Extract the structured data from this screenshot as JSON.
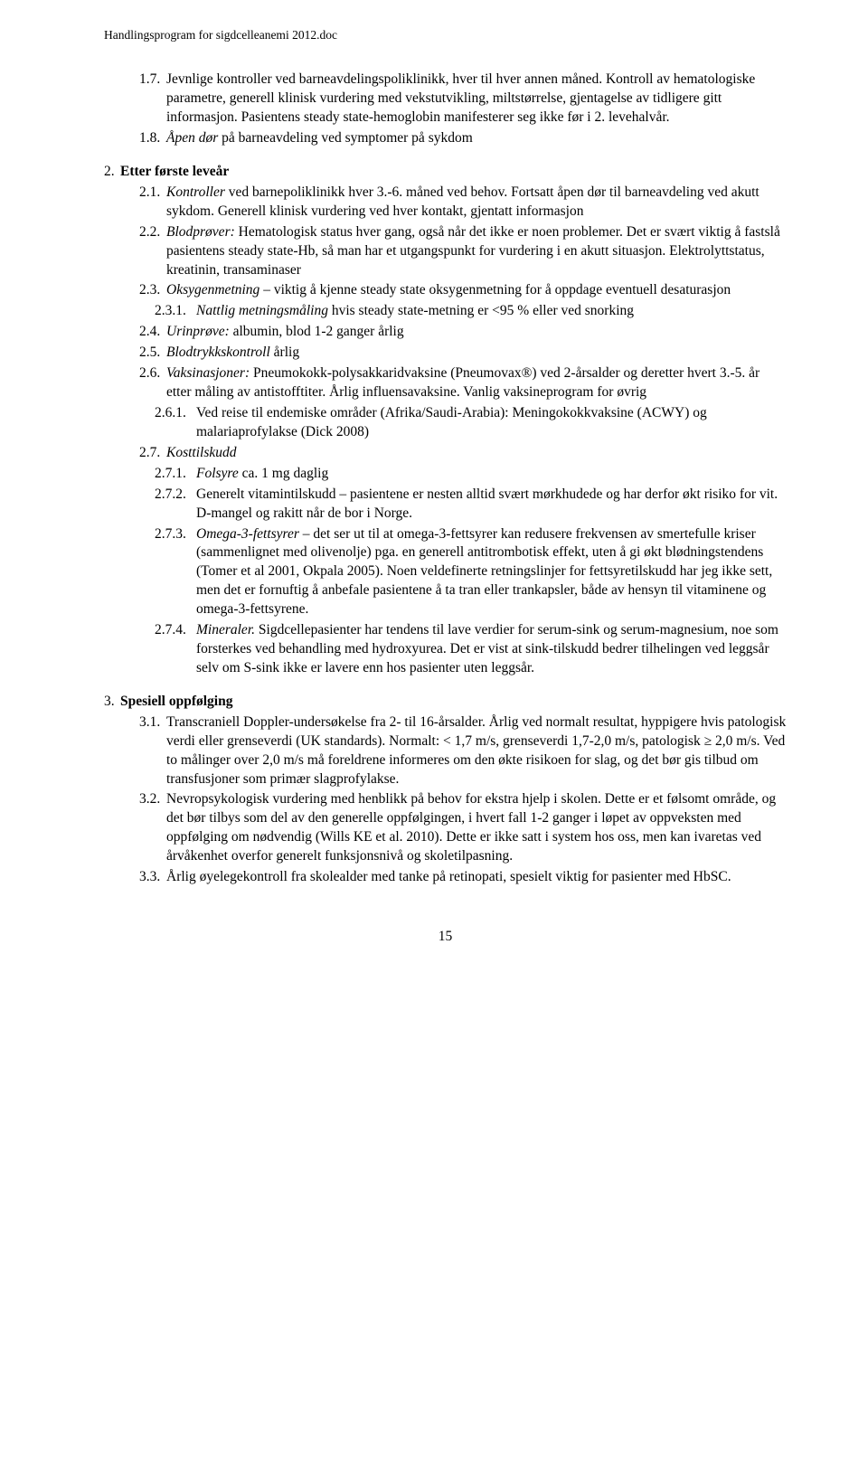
{
  "header": "Handlingsprogram for sigdcelleanemi 2012.doc",
  "items": [
    {
      "type": "row",
      "indent": 39,
      "numWidth": 30,
      "num": "1.7.",
      "text": "Jevnlige kontroller ved barneavdelingspoliklinikk, hver til hver annen måned. Kontroll av hematologiske parametre, generell klinisk vurdering med vekstutvikling, miltstørrelse, gjentagelse av tidligere gitt informasjon. Pasientens steady state-hemoglobin manifesterer seg ikke før i 2. levehalvår."
    },
    {
      "type": "row",
      "indent": 39,
      "numWidth": 30,
      "num": "1.8.",
      "text": "<span class=\"italic\">Åpen dør</span> på barneavdeling ved symptomer på sykdom"
    },
    {
      "type": "spacer"
    },
    {
      "type": "row",
      "indent": 0,
      "numWidth": 18,
      "num": "2.",
      "text": "<span class=\"bold\">Etter første leveår</span>"
    },
    {
      "type": "row",
      "indent": 39,
      "numWidth": 30,
      "num": "2.1.",
      "text": "<span class=\"italic\">Kontroller</span> ved barnepoliklinikk hver 3.-6. måned ved behov. Fortsatt åpen dør til barneavdeling ved akutt sykdom. Generell klinisk vurdering ved hver kontakt, gjentatt informasjon"
    },
    {
      "type": "row",
      "indent": 39,
      "numWidth": 30,
      "num": "2.2.",
      "text": "<span class=\"italic\">Blodprøver:</span> Hematologisk status hver gang, også når det ikke er noen problemer. Det er svært viktig å fastslå pasientens steady state-Hb, så man har et utgangspunkt for vurdering i en akutt situasjon. Elektrolyttstatus, kreatinin, transaminaser"
    },
    {
      "type": "row",
      "indent": 39,
      "numWidth": 30,
      "num": "2.3.",
      "text": "<span class=\"italic\">Oksygenmetning</span> – viktig å kjenne steady state oksygenmetning for å oppdage eventuell desaturasjon"
    },
    {
      "type": "row",
      "indent": 56,
      "numWidth": 46,
      "num": "2.3.1.",
      "text": "<span class=\"italic\">Nattlig metningsmåling</span> hvis steady state-metning er &lt;95 % eller ved snorking"
    },
    {
      "type": "row",
      "indent": 39,
      "numWidth": 30,
      "num": "2.4.",
      "text": "<span class=\"italic\">Urinprøve:</span> albumin, blod 1-2 ganger årlig"
    },
    {
      "type": "row",
      "indent": 39,
      "numWidth": 30,
      "num": "2.5.",
      "text": "<span class=\"italic\">Blodtrykkskontroll</span> årlig"
    },
    {
      "type": "row",
      "indent": 39,
      "numWidth": 30,
      "num": "2.6.",
      "text": "<span class=\"italic\">Vaksinasjoner:</span> Pneumokokk-polysakkaridvaksine (Pneumovax®) ved 2-årsalder og deretter hvert 3.-5. år etter måling av antistofftiter. Årlig influensavaksine. Vanlig vaksineprogram for øvrig"
    },
    {
      "type": "row",
      "indent": 56,
      "numWidth": 46,
      "num": "2.6.1.",
      "text": "Ved reise til endemiske områder (Afrika/Saudi-Arabia): Meningokokkvaksine (ACWY) og malariaprofylakse (Dick 2008)"
    },
    {
      "type": "row",
      "indent": 39,
      "numWidth": 30,
      "num": "2.7.",
      "text": "<span class=\"italic\">Kosttilskudd</span>"
    },
    {
      "type": "row",
      "indent": 56,
      "numWidth": 46,
      "num": "2.7.1.",
      "text": "<span class=\"italic\">Folsyre</span> ca. 1 mg daglig"
    },
    {
      "type": "row",
      "indent": 56,
      "numWidth": 46,
      "num": "2.7.2.",
      "text": "Generelt vitamintilskudd – pasientene er nesten alltid svært mørkhudede og har derfor økt risiko for vit. D-mangel og rakitt når de bor i Norge."
    },
    {
      "type": "row",
      "indent": 56,
      "numWidth": 46,
      "num": "2.7.3.",
      "text": "<span class=\"italic\">Omega-3-fettsyrer</span> – det ser ut til at omega-3-fettsyrer kan redusere frekvensen av smertefulle kriser (sammenlignet med olivenolje) pga. en generell antitrombotisk effekt, uten å gi økt blødningstendens (Tomer et al 2001, Okpala 2005). Noen veldefinerte retningslinjer for fettsyretilskudd har jeg ikke sett, men det er fornuftig å anbefale pasientene å ta tran eller trankapsler, både av hensyn til vitaminene og omega-3-fettsyrene."
    },
    {
      "type": "row",
      "indent": 56,
      "numWidth": 46,
      "num": "2.7.4.",
      "text": "<span class=\"italic\">Mineraler.</span> Sigdcellepasienter har tendens til lave verdier for serum-sink og serum-magnesium, noe som forsterkes ved behandling med hydroxyurea. Det er vist at sink-tilskudd bedrer tilhelingen ved leggsår selv om S-sink ikke er lavere enn hos pasienter uten leggsår."
    },
    {
      "type": "spacer"
    },
    {
      "type": "row",
      "indent": 0,
      "numWidth": 18,
      "num": "3.",
      "text": "<span class=\"bold\">Spesiell oppfølging</span>"
    },
    {
      "type": "row",
      "indent": 39,
      "numWidth": 30,
      "num": "3.1.",
      "text": "Transcraniell Doppler-undersøkelse fra 2- til 16-årsalder. Årlig ved normalt resultat, hyppigere hvis patologisk verdi eller grenseverdi (UK standards). Normalt: &lt; 1,7 m/s, grenseverdi 1,7-2,0 m/s, patologisk ≥ 2,0 m/s. Ved to målinger over 2,0 m/s må foreldrene informeres om den økte risikoen for slag, og det bør gis tilbud om transfusjoner som primær slagprofylakse."
    },
    {
      "type": "row",
      "indent": 39,
      "numWidth": 30,
      "num": "3.2.",
      "text": "Nevropsykologisk vurdering med henblikk på behov for ekstra hjelp i skolen. Dette er et følsomt område, og det bør tilbys som del av den generelle oppfølgingen, i hvert fall 1-2 ganger i løpet av oppveksten med oppfølging om nødvendig (Wills KE et al. 2010). Dette er ikke satt i system hos oss, men kan ivaretas ved årvåkenhet overfor generelt funksjonsnivå og skoletilpasning."
    },
    {
      "type": "row",
      "indent": 39,
      "numWidth": 30,
      "num": "3.3.",
      "text": "Årlig øyelegekontroll fra skolealder med tanke på retinopati, spesielt viktig for pasienter med HbSC."
    }
  ],
  "pageNum": "15"
}
